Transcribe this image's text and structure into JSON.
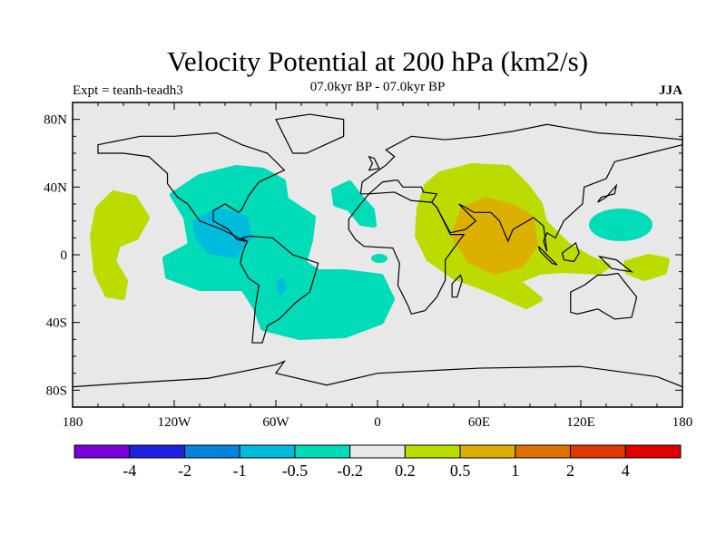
{
  "chart_data": {
    "type": "heatmap",
    "subtype": "filled contour map",
    "title": "Velocity Potential at 200 hPa (km2/s)",
    "left_string": "Expt = teanh-teadh3",
    "center_string": "07.0kyr BP - 07.0kyr BP",
    "right_string": "JJA",
    "x_ticks": [
      {
        "value": -180,
        "label": "180"
      },
      {
        "value": -120,
        "label": "120W"
      },
      {
        "value": -60,
        "label": "60W"
      },
      {
        "value": 0,
        "label": "0"
      },
      {
        "value": 60,
        "label": "60E"
      },
      {
        "value": 120,
        "label": "120E"
      },
      {
        "value": 180,
        "label": "180"
      }
    ],
    "y_ticks": [
      {
        "value": 80,
        "label": "80N"
      },
      {
        "value": 40,
        "label": "40N"
      },
      {
        "value": 0,
        "label": "0"
      },
      {
        "value": -40,
        "label": "40S"
      },
      {
        "value": -80,
        "label": "80S"
      }
    ],
    "xlim": [
      -180,
      180
    ],
    "ylim": [
      -90,
      90
    ],
    "colorbar": {
      "levels": [
        "-4",
        "-2",
        "-1",
        "-0.5",
        "-0.2",
        "0.2",
        "0.5",
        "1",
        "2",
        "4"
      ],
      "colors": [
        "#7a00dc",
        "#2020e0",
        "#0084dc",
        "#00bcdc",
        "#00dcb8",
        "#e8e8e8",
        "#bcdc00",
        "#dcb000",
        "#dc7000",
        "#e03800",
        "#e00000"
      ]
    },
    "regions": [
      {
        "name": "americas-negative",
        "range": "-0.5 to -0.2"
      },
      {
        "name": "central-america-negative",
        "range": "-1 to -0.5"
      },
      {
        "name": "indian-ocean-positive",
        "range": "0.2 to 0.5"
      },
      {
        "name": "arabian-sea-positive",
        "range": "0.5 to 1"
      },
      {
        "name": "east-pacific-positive",
        "range": "0.2 to 0.5"
      },
      {
        "name": "west-pacific-positive",
        "range": "0.2 to 0.5"
      },
      {
        "name": "west-pacific-negative",
        "range": "-0.5 to -0.2"
      }
    ]
  }
}
